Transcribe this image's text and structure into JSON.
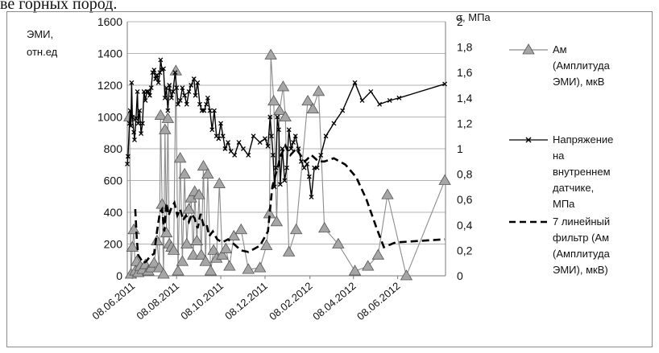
{
  "caption_fragment": "ве горных пород.",
  "chart_data": {
    "type": "line",
    "left_axis": {
      "label_line1": "ЭМИ,",
      "label_line2": "отн.ед",
      "ylim": [
        0,
        1600
      ],
      "ticks": [
        "0",
        "200",
        "400",
        "600",
        "800",
        "1000",
        "1200",
        "1400",
        "1600"
      ]
    },
    "right_axis": {
      "label": "σ, МПа",
      "ylim": [
        0,
        2
      ],
      "ticks": [
        "0",
        "0,2",
        "0,4",
        "0,6",
        "0,8",
        "1",
        "1,2",
        "1,4",
        "1,6",
        "1,8",
        "2"
      ]
    },
    "x_axis": {
      "range": [
        "2011-06-01",
        "2012-08-13"
      ],
      "tick_dates": [
        "2011-06-08",
        "2011-08-08",
        "2011-10-08",
        "2011-12-08",
        "2012-02-08",
        "2012-04-08",
        "2012-06-08"
      ],
      "tick_labels": [
        "08.06.2011",
        "08.08.2011",
        "08.10.2011",
        "08.12.2011",
        "08.02.2012",
        "08.04.2012",
        "08.06.2012"
      ]
    },
    "grid": "horizontal",
    "legend_placement": "right",
    "series": [
      {
        "name": "Ам (Амплитуда ЭМИ), мкВ",
        "axis": "left",
        "color": "#8c8c8c",
        "marker_fill": "#a6a6a6",
        "points": [
          [
            "2011-06-04",
            1000
          ],
          [
            "2011-06-06",
            10
          ],
          [
            "2011-06-08",
            180
          ],
          [
            "2011-06-10",
            290
          ],
          [
            "2011-06-12",
            30
          ],
          [
            "2011-06-14",
            90
          ],
          [
            "2011-06-16",
            20
          ],
          [
            "2011-06-19",
            60
          ],
          [
            "2011-06-22",
            40
          ],
          [
            "2011-06-26",
            70
          ],
          [
            "2011-06-30",
            30
          ],
          [
            "2011-07-04",
            50
          ],
          [
            "2011-07-08",
            80
          ],
          [
            "2011-07-12",
            220
          ],
          [
            "2011-07-15",
            50
          ],
          [
            "2011-07-17",
            1010
          ],
          [
            "2011-07-19",
            450
          ],
          [
            "2011-07-21",
            10
          ],
          [
            "2011-07-23",
            920
          ],
          [
            "2011-07-25",
            270
          ],
          [
            "2011-07-27",
            990
          ],
          [
            "2011-07-29",
            200
          ],
          [
            "2011-08-01",
            180
          ],
          [
            "2011-08-04",
            160
          ],
          [
            "2011-08-07",
            1290
          ],
          [
            "2011-08-10",
            30
          ],
          [
            "2011-08-13",
            740
          ],
          [
            "2011-08-16",
            90
          ],
          [
            "2011-08-19",
            640
          ],
          [
            "2011-08-22",
            200
          ],
          [
            "2011-08-25",
            420
          ],
          [
            "2011-08-28",
            490
          ],
          [
            "2011-08-31",
            130
          ],
          [
            "2011-09-02",
            530
          ],
          [
            "2011-09-05",
            220
          ],
          [
            "2011-09-08",
            510
          ],
          [
            "2011-09-11",
            130
          ],
          [
            "2011-09-14",
            690
          ],
          [
            "2011-09-17",
            90
          ],
          [
            "2011-09-20",
            640
          ],
          [
            "2011-09-24",
            30
          ],
          [
            "2011-09-28",
            160
          ],
          [
            "2011-10-02",
            110
          ],
          [
            "2011-10-06",
            580
          ],
          [
            "2011-10-10",
            130
          ],
          [
            "2011-10-15",
            170
          ],
          [
            "2011-10-20",
            60
          ],
          [
            "2011-10-26",
            250
          ],
          [
            "2011-11-05",
            290
          ],
          [
            "2011-11-15",
            40
          ],
          [
            "2011-12-01",
            50
          ],
          [
            "2011-12-10",
            190
          ],
          [
            "2011-12-14",
            390
          ],
          [
            "2011-12-16",
            1390
          ],
          [
            "2011-12-20",
            1100
          ],
          [
            "2011-12-24",
            340
          ],
          [
            "2011-12-28",
            1040
          ],
          [
            "2012-01-02",
            1190
          ],
          [
            "2012-01-05",
            1000
          ],
          [
            "2012-01-10",
            150
          ],
          [
            "2012-01-20",
            290
          ],
          [
            "2012-02-05",
            1100
          ],
          [
            "2012-02-12",
            1050
          ],
          [
            "2012-02-20",
            1160
          ],
          [
            "2012-02-28",
            300
          ],
          [
            "2012-03-18",
            200
          ],
          [
            "2012-04-10",
            30
          ],
          [
            "2012-04-28",
            60
          ],
          [
            "2012-05-12",
            130
          ],
          [
            "2012-05-25",
            510
          ],
          [
            "2012-06-20",
            0
          ],
          [
            "2012-08-12",
            600
          ]
        ]
      },
      {
        "name": "Напряжение на внутреннем датчике, МПа",
        "axis": "right",
        "color": "#000000",
        "points": [
          [
            "2011-06-01",
            0.88
          ],
          [
            "2011-06-02",
            0.94
          ],
          [
            "2011-06-04",
            1.2
          ],
          [
            "2011-06-05",
            1.3
          ],
          [
            "2011-06-06",
            1.18
          ],
          [
            "2011-06-07",
            1.52
          ],
          [
            "2011-06-08",
            1.25
          ],
          [
            "2011-06-10",
            1.13
          ],
          [
            "2011-06-11",
            1.07
          ],
          [
            "2011-06-13",
            1.24
          ],
          [
            "2011-06-15",
            1.45
          ],
          [
            "2011-06-16",
            1.2
          ],
          [
            "2011-06-18",
            1.3
          ],
          [
            "2011-06-20",
            1.12
          ],
          [
            "2011-06-22",
            1.2
          ],
          [
            "2011-06-24",
            1.45
          ],
          [
            "2011-06-26",
            1.38
          ],
          [
            "2011-06-28",
            1.45
          ],
          [
            "2011-06-30",
            1.45
          ],
          [
            "2011-07-02",
            1.42
          ],
          [
            "2011-07-04",
            1.48
          ],
          [
            "2011-07-06",
            1.6
          ],
          [
            "2011-07-08",
            1.62
          ],
          [
            "2011-07-10",
            1.55
          ],
          [
            "2011-07-12",
            1.58
          ],
          [
            "2011-07-14",
            1.52
          ],
          [
            "2011-07-16",
            1.6
          ],
          [
            "2011-07-17",
            1.7
          ],
          [
            "2011-07-19",
            1.62
          ],
          [
            "2011-07-21",
            1.63
          ],
          [
            "2011-07-23",
            1.4
          ],
          [
            "2011-07-25",
            1.48
          ],
          [
            "2011-07-27",
            1.3
          ],
          [
            "2011-07-29",
            1.5
          ],
          [
            "2011-08-01",
            1.4
          ],
          [
            "2011-08-03",
            1.45
          ],
          [
            "2011-08-06",
            1.6
          ],
          [
            "2011-08-08",
            1.48
          ],
          [
            "2011-08-10",
            1.35
          ],
          [
            "2011-08-13",
            1.38
          ],
          [
            "2011-08-16",
            1.48
          ],
          [
            "2011-08-19",
            1.42
          ],
          [
            "2011-08-22",
            1.35
          ],
          [
            "2011-08-25",
            1.45
          ],
          [
            "2011-08-28",
            1.5
          ],
          [
            "2011-09-01",
            1.55
          ],
          [
            "2011-09-03",
            1.42
          ],
          [
            "2011-09-06",
            1.52
          ],
          [
            "2011-09-09",
            1.35
          ],
          [
            "2011-09-12",
            1.3
          ],
          [
            "2011-09-15",
            1.3
          ],
          [
            "2011-09-18",
            1.35
          ],
          [
            "2011-09-20",
            1.4
          ],
          [
            "2011-09-23",
            1.3
          ],
          [
            "2011-09-26",
            1.15
          ],
          [
            "2011-09-29",
            1.3
          ],
          [
            "2011-10-02",
            1.1
          ],
          [
            "2011-10-05",
            1.08
          ],
          [
            "2011-10-08",
            1.2
          ],
          [
            "2011-10-11",
            1.1
          ],
          [
            "2011-10-14",
            1.0
          ],
          [
            "2011-10-18",
            1.05
          ],
          [
            "2011-10-22",
            0.98
          ],
          [
            "2011-10-27",
            0.95
          ],
          [
            "2011-11-02",
            1.05
          ],
          [
            "2011-11-08",
            1.0
          ],
          [
            "2011-11-15",
            0.95
          ],
          [
            "2011-11-22",
            1.1
          ],
          [
            "2011-12-01",
            1.05
          ],
          [
            "2011-12-08",
            1.08
          ],
          [
            "2011-12-12",
            1.02
          ],
          [
            "2011-12-15",
            1.25
          ],
          [
            "2011-12-17",
            1.1
          ],
          [
            "2011-12-19",
            0.95
          ],
          [
            "2011-12-21",
            0.7
          ],
          [
            "2011-12-23",
            0.85
          ],
          [
            "2011-12-25",
            1.25
          ],
          [
            "2011-12-27",
            1.15
          ],
          [
            "2011-12-29",
            0.72
          ],
          [
            "2012-01-01",
            1.0
          ],
          [
            "2012-01-04",
            0.75
          ],
          [
            "2012-01-07",
            0.85
          ],
          [
            "2012-01-10",
            1.15
          ],
          [
            "2012-01-13",
            1.0
          ],
          [
            "2012-01-16",
            1.05
          ],
          [
            "2012-01-19",
            1.1
          ],
          [
            "2012-01-23",
            1.0
          ],
          [
            "2012-01-27",
            0.9
          ],
          [
            "2012-01-31",
            0.85
          ],
          [
            "2012-02-04",
            0.88
          ],
          [
            "2012-02-07",
            0.78
          ],
          [
            "2012-02-10",
            0.62
          ],
          [
            "2012-02-14",
            0.85
          ],
          [
            "2012-02-18",
            0.85
          ],
          [
            "2012-02-23",
            0.95
          ],
          [
            "2012-03-01",
            1.1
          ],
          [
            "2012-03-12",
            1.2
          ],
          [
            "2012-03-24",
            1.3
          ],
          [
            "2012-04-10",
            1.52
          ],
          [
            "2012-04-20",
            1.38
          ],
          [
            "2012-05-02",
            1.45
          ],
          [
            "2012-05-14",
            1.35
          ],
          [
            "2012-05-28",
            1.38
          ],
          [
            "2012-06-10",
            1.4
          ],
          [
            "2012-08-12",
            1.51
          ]
        ]
      },
      {
        "name": "7 линейный фильтр (Ам (Амплитуда ЭМИ), мкВ)",
        "axis": "left",
        "color": "#000000",
        "dashed": true,
        "points": [
          [
            "2011-06-12",
            420
          ],
          [
            "2011-06-14",
            240
          ],
          [
            "2011-06-16",
            130
          ],
          [
            "2011-06-19",
            110
          ],
          [
            "2011-06-23",
            80
          ],
          [
            "2011-06-27",
            90
          ],
          [
            "2011-07-02",
            120
          ],
          [
            "2011-07-08",
            140
          ],
          [
            "2011-07-12",
            280
          ],
          [
            "2011-07-16",
            400
          ],
          [
            "2011-07-19",
            420
          ],
          [
            "2011-07-22",
            280
          ],
          [
            "2011-07-25",
            460
          ],
          [
            "2011-07-28",
            380
          ],
          [
            "2011-08-01",
            430
          ],
          [
            "2011-08-05",
            460
          ],
          [
            "2011-08-09",
            380
          ],
          [
            "2011-08-13",
            420
          ],
          [
            "2011-08-17",
            350
          ],
          [
            "2011-08-21",
            380
          ],
          [
            "2011-08-25",
            340
          ],
          [
            "2011-08-29",
            390
          ],
          [
            "2011-09-02",
            360
          ],
          [
            "2011-09-06",
            300
          ],
          [
            "2011-09-10",
            390
          ],
          [
            "2011-09-14",
            320
          ],
          [
            "2011-09-18",
            330
          ],
          [
            "2011-09-22",
            250
          ],
          [
            "2011-09-27",
            280
          ],
          [
            "2011-10-03",
            230
          ],
          [
            "2011-10-10",
            210
          ],
          [
            "2011-10-18",
            230
          ],
          [
            "2011-10-26",
            200
          ],
          [
            "2011-11-05",
            160
          ],
          [
            "2011-11-15",
            150
          ],
          [
            "2011-12-01",
            190
          ],
          [
            "2011-12-12",
            280
          ],
          [
            "2011-12-18",
            560
          ],
          [
            "2011-12-24",
            660
          ],
          [
            "2011-12-30",
            760
          ],
          [
            "2012-01-05",
            820
          ],
          [
            "2012-01-12",
            760
          ],
          [
            "2012-01-20",
            800
          ],
          [
            "2012-02-01",
            720
          ],
          [
            "2012-02-10",
            760
          ],
          [
            "2012-02-20",
            720
          ],
          [
            "2012-02-28",
            720
          ],
          [
            "2012-03-12",
            740
          ],
          [
            "2012-03-28",
            700
          ],
          [
            "2012-04-12",
            620
          ],
          [
            "2012-04-26",
            480
          ],
          [
            "2012-05-10",
            300
          ],
          [
            "2012-05-20",
            180
          ],
          [
            "2012-06-05",
            210
          ],
          [
            "2012-08-12",
            230
          ]
        ]
      }
    ]
  },
  "legend": [
    {
      "text": "Ам\n(Амплитуда\nЭМИ), мкВ",
      "style": "triangle"
    },
    {
      "text": "Напряжение\nна\nвнутреннем\nдатчике,\nМПа",
      "style": "cross"
    },
    {
      "text": "7 линейный\nфильтр (Ам\n(Амплитуда\nЭМИ), мкВ)",
      "style": "dashed"
    }
  ]
}
